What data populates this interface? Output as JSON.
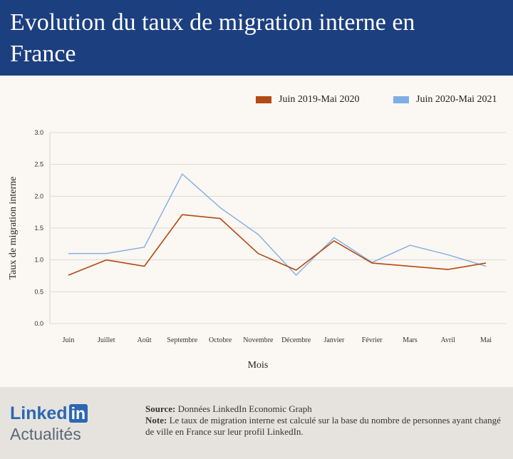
{
  "header": {
    "title": "Evolution du taux de migration interne en France"
  },
  "chart_data": {
    "type": "line",
    "title": "Evolution du taux de migration interne en France",
    "xlabel": "Mois",
    "ylabel": "Taux de migration interne",
    "categories": [
      "Juin",
      "Juillet",
      "Août",
      "Septembre",
      "Octobre",
      "Novembre",
      "Décembre",
      "Janvier",
      "Février",
      "Mars",
      "Avril",
      "Mai"
    ],
    "ylim": [
      0,
      3
    ],
    "yticks": [
      "0.0",
      "0.5",
      "1.0",
      "1.5",
      "2.0",
      "2.5",
      "3.0"
    ],
    "legend_position": "top-right",
    "series": [
      {
        "name": "Juin 2019-Mai 2020",
        "color": "#b24a13",
        "values": [
          0.76,
          1.0,
          0.9,
          1.71,
          1.65,
          1.1,
          0.84,
          1.3,
          0.95,
          0.9,
          0.85,
          0.95
        ]
      },
      {
        "name": "Juin 2020-Mai 2021",
        "color": "#7faee6",
        "values": [
          1.1,
          1.1,
          1.2,
          2.35,
          1.82,
          1.4,
          0.76,
          1.35,
          0.96,
          1.23,
          1.08,
          0.9
        ]
      }
    ]
  },
  "footer": {
    "logo_linked": "Linked",
    "logo_in": "in",
    "logo_actualites": "Actualités",
    "source_label": "Source:",
    "source_text": " Données LinkedIn Economic Graph",
    "note_label": "Note:",
    "note_text": " Le taux de migration interne est calculé sur la base du nombre de personnes ayant changé de ville en France sur leur profil LinkedIn."
  }
}
